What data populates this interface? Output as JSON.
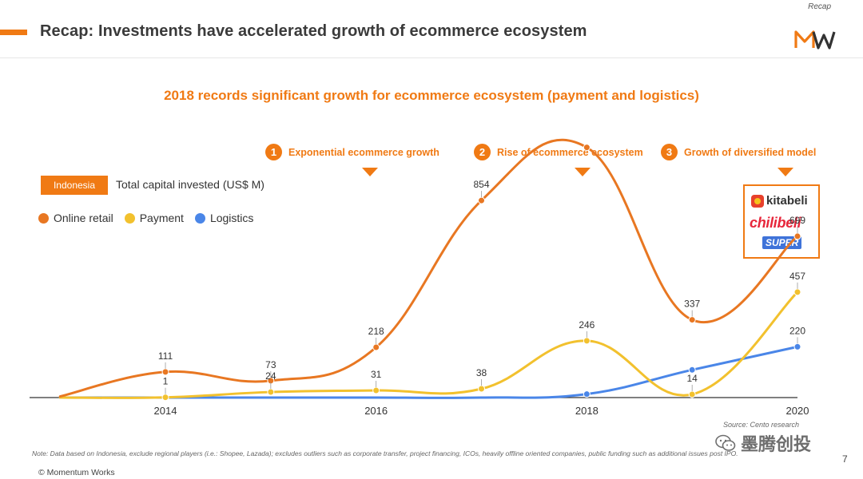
{
  "header": {
    "corner_label": "Recap",
    "title": "Recap: Investments have accelerated growth of ecommerce ecosystem"
  },
  "subtitle": "2018 records significant growth for ecommerce ecosystem (payment and logistics)",
  "phases": [
    {
      "num": "1",
      "label": "Exponential ecommerce growth"
    },
    {
      "num": "2",
      "label": "Rise of ecommerce ecosystem"
    },
    {
      "num": "3",
      "label": "Growth of diversified model"
    }
  ],
  "country_tag": "Indonesia",
  "metric_label": "Total capital invested (US$ M)",
  "brands": {
    "kitabeli": "kitabeli",
    "chilibeli": "chilibeli",
    "super": "SUPER"
  },
  "colors": {
    "accent": "#f07a14",
    "online_retail": "#e87722",
    "payment": "#f2c12e",
    "logistics": "#4a86e8"
  },
  "chart_data": {
    "type": "line",
    "title": "Total capital invested (US$ M)",
    "x": [
      2013,
      2014,
      2015,
      2016,
      2017,
      2018,
      2019,
      2020
    ],
    "x_tick_labels": [
      "2014",
      "2016",
      "2018",
      "2020"
    ],
    "x_tick_values": [
      2014,
      2016,
      2018,
      2020
    ],
    "ylim": [
      0,
      1100
    ],
    "xlim": [
      2012.9,
      2020.0
    ],
    "series": [
      {
        "name": "Online retail",
        "color": "#e87722",
        "values": [
          5,
          111,
          73,
          218,
          854,
          1084,
          337,
          699
        ],
        "labels": [
          null,
          "111",
          "73",
          "218",
          "854",
          null,
          "337",
          "699"
        ]
      },
      {
        "name": "Payment",
        "color": "#f2c12e",
        "values": [
          0,
          1,
          24,
          31,
          38,
          246,
          14,
          457
        ],
        "labels": [
          null,
          "1",
          "24",
          "31",
          "38",
          "246",
          "14",
          "457"
        ]
      },
      {
        "name": "Logistics",
        "color": "#4a86e8",
        "values": [
          0,
          0,
          0,
          0,
          0,
          15,
          120,
          220
        ],
        "labels": [
          null,
          null,
          null,
          null,
          null,
          null,
          null,
          "220"
        ]
      }
    ]
  },
  "footer": {
    "source": "Source: Cento research",
    "note": "Note: Data based on Indonesia, exclude regional players (i.e.: Shopee, Lazada); excludes outliers such as corporate transfer, project financing, ICOs, heavily offline oriented companies, public funding such as additional issues post IPO.",
    "copyright": "© Momentum Works",
    "page_number": "7",
    "watermark": "墨腾创投"
  }
}
